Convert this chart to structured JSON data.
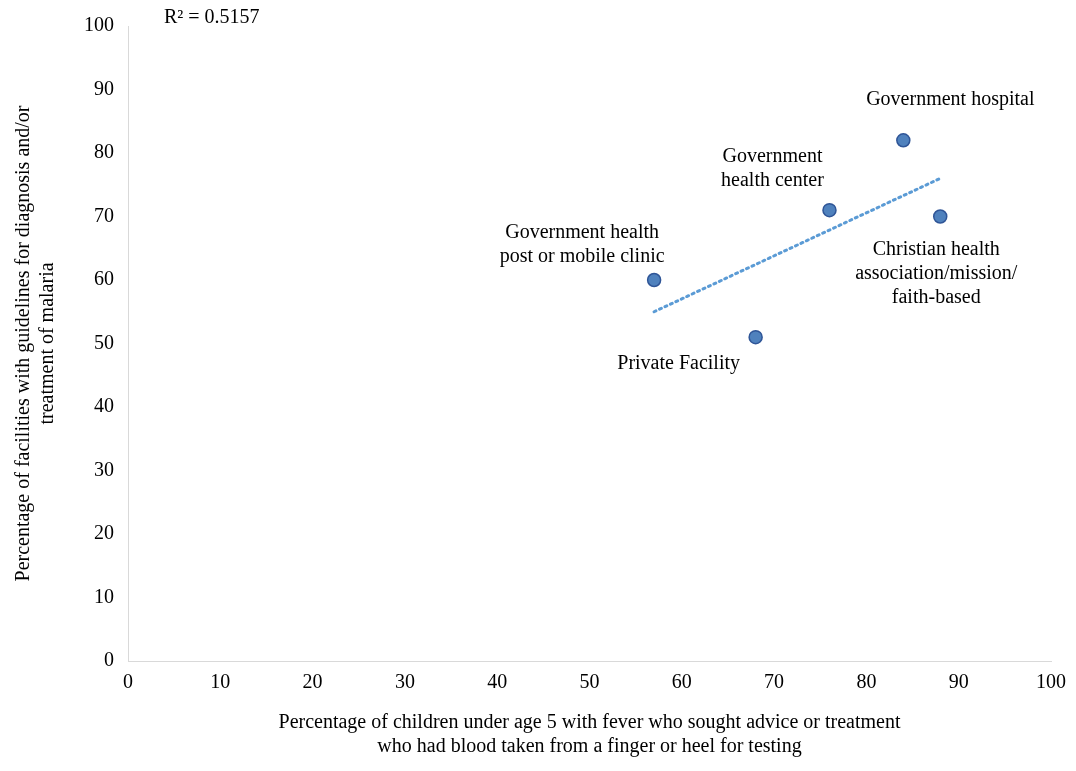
{
  "chart_data": {
    "type": "scatter",
    "xlabel": "Percentage of children under age 5 with fever who sought advice or treatment\nwho had blood taken from a finger or heel for testing",
    "ylabel": "Percentage of facilities with guidelines for diagnosis and/or\ntreatment of malaria",
    "series": [
      {
        "type": "scatter",
        "color": "#4f81bd",
        "x": [
          84,
          76,
          88,
          57,
          68
        ],
        "values": [
          82,
          71,
          70,
          60,
          51
        ],
        "marker": "circle"
      },
      {
        "type": "line",
        "color": "#5b9bd5",
        "x": [
          57,
          88
        ],
        "values": [
          55,
          76
        ],
        "line_style": "dotted",
        "marker": "none"
      }
    ],
    "xlim": [
      0,
      100
    ],
    "xticks": [
      0,
      10,
      20,
      30,
      40,
      50,
      60,
      70,
      80,
      90,
      100
    ],
    "ylim": [
      0,
      100
    ],
    "yticks": [
      0,
      10,
      20,
      30,
      40,
      50,
      60,
      70,
      80,
      90,
      100
    ],
    "grid": false,
    "legend": false,
    "annotations": [
      "R² = 0.5157",
      {
        "text": "Government hospital",
        "x": 84,
        "y": 82
      },
      {
        "text": "Government\nhealth center",
        "x": 76,
        "y": 71
      },
      {
        "text": "Government health\npost or mobile clinic",
        "x": 57,
        "y": 60
      },
      {
        "text": "Christian health\nassociation/mission/\nfaith-based",
        "x": 88,
        "y": 70
      },
      {
        "text": "Private Facility",
        "x": 68,
        "y": 51
      }
    ]
  }
}
